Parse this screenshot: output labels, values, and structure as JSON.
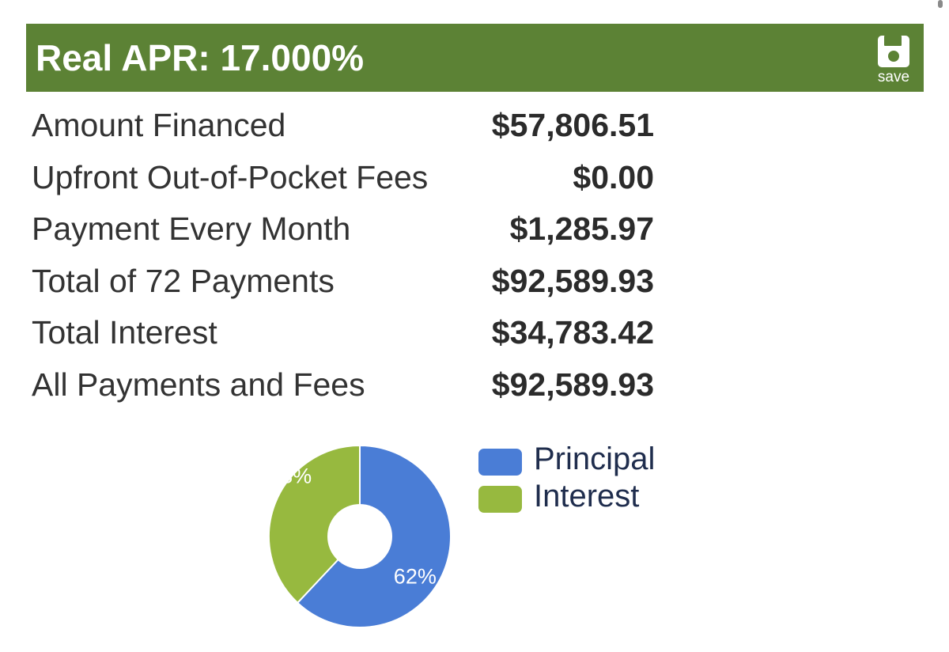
{
  "header": {
    "title": "Real APR: 17.000%",
    "save_icon": "floppy-disk-icon",
    "save_label": "save",
    "color": "#5c8235"
  },
  "summary": {
    "rows": [
      {
        "label": "Amount Financed",
        "value": "$57,806.51"
      },
      {
        "label": "Upfront Out-of-Pocket Fees",
        "value": "$0.00"
      },
      {
        "label": "Payment Every Month",
        "value": "$1,285.97"
      },
      {
        "label": "Total of 72 Payments",
        "value": "$92,589.93"
      },
      {
        "label": "Total Interest",
        "value": "$34,783.42"
      },
      {
        "label": "All Payments and Fees",
        "value": "$92,589.93"
      }
    ]
  },
  "chart_data": {
    "type": "pie",
    "donut": true,
    "start": "top",
    "direction": "clockwise",
    "categories": [
      "Principal",
      "Interest"
    ],
    "values": [
      62,
      38
    ],
    "labels": [
      "62%",
      "38%"
    ],
    "colors": [
      "#4a7dd6",
      "#97b93f"
    ],
    "legend": "right"
  }
}
